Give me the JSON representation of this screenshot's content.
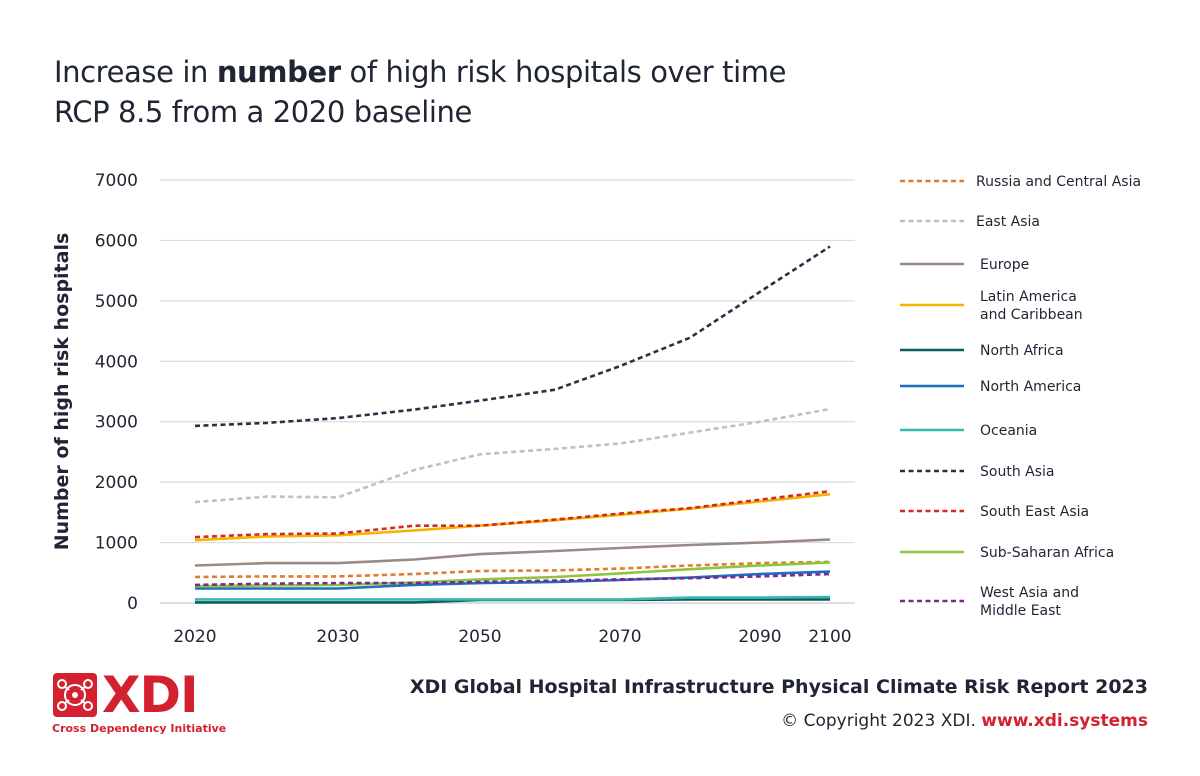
{
  "title": {
    "line1_pre": "Increase in ",
    "line1_bold": "number",
    "line1_post": " of high risk hospitals over time",
    "line2": "RCP 8.5 from a 2020 baseline"
  },
  "footer": {
    "logo_text": "XDI",
    "logo_subtitle": "Cross Dependency Initiative",
    "report_title": "XDI Global Hospital Infrastructure Physical Climate Risk Report 2023",
    "copyright": "© Copyright 2023 XDI.",
    "website": "www.xdi.systems"
  },
  "chart_data": {
    "type": "line",
    "ylabel": "Number of high risk hospitals",
    "xlabel": "",
    "ylim": [
      0,
      7000
    ],
    "y_ticks": [
      0,
      1000,
      2000,
      3000,
      4000,
      5000,
      6000,
      7000
    ],
    "x": [
      2020,
      2025,
      2030,
      2040,
      2050,
      2060,
      2070,
      2080,
      2090,
      2100
    ],
    "x_tick_labels": [
      "2020",
      "2030",
      "2050",
      "2070",
      "2090",
      "2100"
    ],
    "x_tick_positions": [
      2020,
      2030,
      2050,
      2070,
      2090,
      2100
    ],
    "grid": "horizontal",
    "legend_position": "right",
    "series": [
      {
        "name": "Russia and Central Asia",
        "color": "#e07b30",
        "dash": true,
        "values": [
          430,
          440,
          440,
          480,
          530,
          540,
          570,
          620,
          660,
          680
        ]
      },
      {
        "name": "East Asia",
        "color": "#c0c0c0",
        "dash": true,
        "values": [
          1670,
          1760,
          1750,
          2200,
          2460,
          2550,
          2640,
          2820,
          3000,
          3210
        ]
      },
      {
        "name": "Europe",
        "color": "#9a8a84",
        "dash": false,
        "values": [
          620,
          660,
          660,
          720,
          810,
          860,
          910,
          960,
          1000,
          1050
        ]
      },
      {
        "name": "Latin America\nand Caribbean",
        "color": "#f5b400",
        "dash": false,
        "values": [
          1040,
          1100,
          1120,
          1200,
          1280,
          1370,
          1460,
          1560,
          1680,
          1800
        ]
      },
      {
        "name": "North Africa",
        "color": "#0b5c5c",
        "dash": false,
        "values": [
          10,
          10,
          10,
          10,
          50,
          50,
          50,
          60,
          60,
          60
        ]
      },
      {
        "name": "North America",
        "color": "#1f6fbf",
        "dash": false,
        "values": [
          240,
          240,
          240,
          300,
          330,
          350,
          380,
          420,
          480,
          520
        ]
      },
      {
        "name": "Oceania",
        "color": "#3ab8b0",
        "dash": false,
        "values": [
          60,
          60,
          60,
          60,
          60,
          60,
          60,
          90,
          90,
          100
        ]
      },
      {
        "name": "South Asia",
        "color": "#2a2f45",
        "dash": true,
        "values": [
          2930,
          2980,
          3060,
          3200,
          3350,
          3530,
          3920,
          4390,
          5150,
          5900
        ]
      },
      {
        "name": "South East Asia",
        "color": "#d52b1e",
        "dash": true,
        "values": [
          1090,
          1140,
          1150,
          1280,
          1280,
          1380,
          1480,
          1570,
          1710,
          1850
        ]
      },
      {
        "name": "Sub-Saharan Africa",
        "color": "#8cc540",
        "dash": false,
        "values": [
          280,
          290,
          300,
          340,
          390,
          430,
          490,
          560,
          620,
          670
        ]
      },
      {
        "name": "West Asia and\nMiddle East",
        "color": "#7b2a8c",
        "dash": true,
        "values": [
          300,
          320,
          330,
          330,
          350,
          370,
          390,
          410,
          440,
          480
        ]
      }
    ]
  }
}
